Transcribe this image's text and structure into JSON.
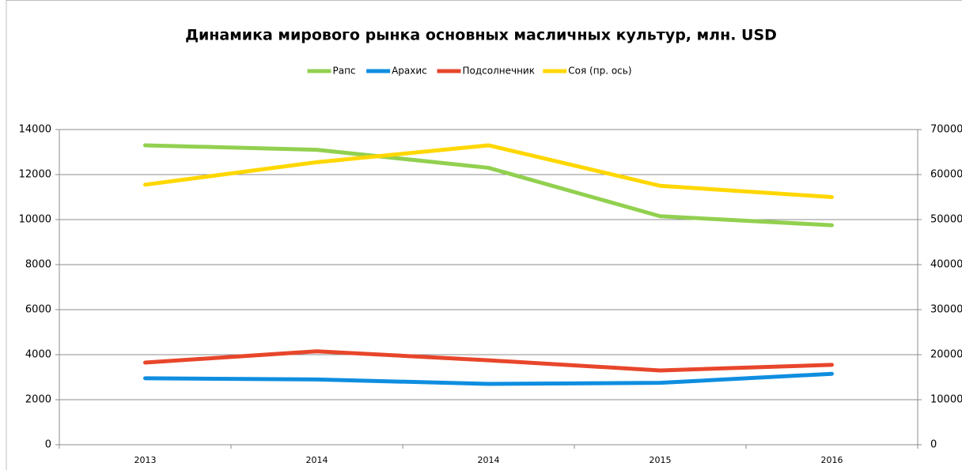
{
  "chart_data": {
    "type": "line",
    "title": "Динамика мирового рынка основных масличных культур, млн. USD",
    "categories": [
      "2013",
      "2014",
      "2014",
      "2015",
      "2016"
    ],
    "series": [
      {
        "name": "Рапс",
        "color": "#92d050",
        "values": [
          13300,
          13100,
          12300,
          10150,
          9750
        ]
      },
      {
        "name": "Арахис",
        "color": "#0f8ee0",
        "values": [
          2950,
          2900,
          2700,
          2750,
          3150
        ]
      },
      {
        "name": "Подсолнечник",
        "color": "#e8462b",
        "values": [
          3650,
          4150,
          3750,
          3300,
          3550
        ]
      },
      {
        "name": "Соя (пр. ось)",
        "color": "#ffd700",
        "axis": "y2",
        "values": [
          57750,
          62750,
          66500,
          57500,
          55000
        ]
      }
    ],
    "ylim": [
      0,
      14000
    ],
    "yticks": [
      0,
      2000,
      4000,
      6000,
      8000,
      10000,
      12000,
      14000
    ],
    "y2lim": [
      0,
      70000
    ],
    "y2ticks": [
      0,
      10000,
      20000,
      30000,
      40000,
      50000,
      60000,
      70000
    ],
    "grid": true,
    "legend": "top"
  }
}
